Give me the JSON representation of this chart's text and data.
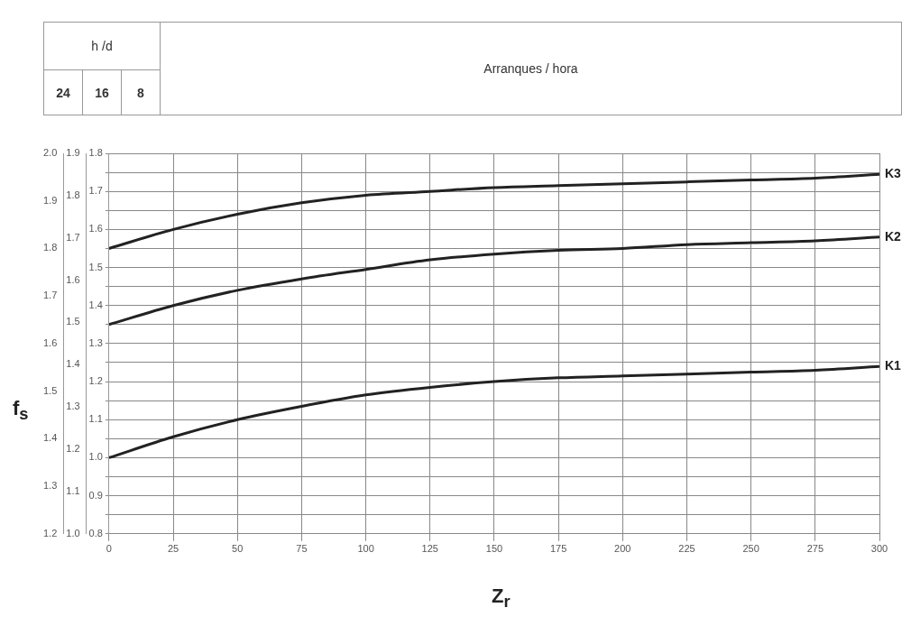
{
  "chart_data": {
    "type": "line",
    "annotations": [
      "h /d",
      "24",
      "16",
      "8",
      "Arranques / hora"
    ],
    "xlabel": "Z$_{r}$",
    "y3label": "f$_{s}$",
    "x": [
      0,
      25,
      50,
      75,
      100,
      125,
      150,
      175,
      200,
      225,
      250,
      275,
      300
    ],
    "series": [
      {
        "name": "K3",
        "color": "#222222",
        "values": [
          1.55,
          1.6,
          1.64,
          1.67,
          1.69,
          1.7,
          1.71,
          1.715,
          1.72,
          1.725,
          1.73,
          1.735,
          1.745
        ]
      },
      {
        "name": "K2",
        "color": "#222222",
        "values": [
          1.35,
          1.4,
          1.44,
          1.47,
          1.495,
          1.52,
          1.535,
          1.545,
          1.55,
          1.56,
          1.565,
          1.57,
          1.58
        ]
      },
      {
        "name": "K1",
        "color": "#222222",
        "values": [
          1.0,
          1.055,
          1.1,
          1.135,
          1.165,
          1.185,
          1.2,
          1.21,
          1.215,
          1.22,
          1.225,
          1.23,
          1.24
        ]
      }
    ],
    "xlim": [
      0,
      300
    ],
    "xticks": [
      0,
      25,
      50,
      75,
      100,
      125,
      150,
      175,
      200,
      225,
      250,
      275,
      300
    ],
    "ylim": [
      0.8,
      1.8
    ],
    "yticks": [
      0.8,
      {
        "value": 0.85,
        "label": null
      },
      0.9,
      {
        "value": 0.95,
        "label": null
      },
      {
        "value": 1,
        "label": "1.0"
      },
      {
        "value": 1.05,
        "label": null
      },
      1.1,
      {
        "value": 1.15,
        "label": null
      },
      1.2,
      {
        "value": 1.25,
        "label": null
      },
      1.3,
      {
        "value": 1.35,
        "label": null
      },
      1.4,
      {
        "value": 1.45,
        "label": null
      },
      1.5,
      {
        "value": 1.55,
        "label": null
      },
      1.6,
      {
        "value": 1.65,
        "label": null
      },
      1.7,
      {
        "value": 1.75,
        "label": null
      },
      1.8
    ],
    "y2lim": [
      1.0,
      1.9
    ],
    "y2ticks": [
      {
        "value": 1,
        "label": "1.0"
      },
      1.1,
      1.2,
      1.3,
      1.4,
      1.5,
      1.6,
      1.7,
      1.8,
      1.9
    ],
    "y3lim": [
      1.2,
      2.0
    ],
    "y3ticks": [
      1.2,
      1.3,
      1.4,
      1.5,
      1.6,
      1.7,
      1.8,
      1.9,
      {
        "value": 2,
        "label": "2.0"
      }
    ],
    "grid": true,
    "marker": "none",
    "line_style": "solid",
    "legend": false
  }
}
